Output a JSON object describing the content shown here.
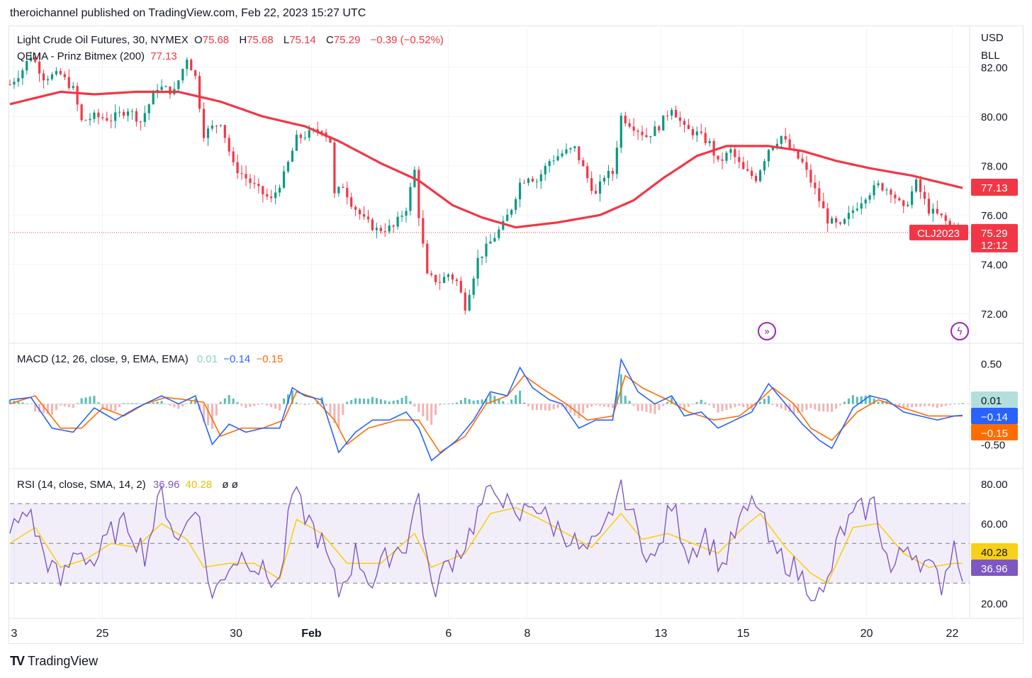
{
  "header": {
    "publisher": "theroichannel published on TradingView.com, Feb 22, 2023 15:27 UTC"
  },
  "footer": {
    "brand": "TradingView",
    "logo_icon": "tradingview-logo-icon"
  },
  "colors": {
    "up": "#089981",
    "down": "#f23645",
    "ema": "#f23645",
    "macd": "#2962ff",
    "signal": "#ff6d00",
    "rsi": "#7e57c2",
    "rsi_ma": "#f7d117",
    "hist_up": "#26a69a",
    "hist_down": "#ef9a9a"
  },
  "chart_data": [
    {
      "type": "candlestick",
      "title": "Light Crude Oil Futures, 30, NYMEX",
      "symbol_tag": "CLJ2023",
      "ohlc": {
        "o_label": "O",
        "o": "75.68",
        "h_label": "H",
        "h": "75.68",
        "l_label": "L",
        "l": "75.14",
        "c_label": "C",
        "c": "75.29",
        "change": "−0.39 (−0.52%)"
      },
      "indicator": {
        "name": "QEMA - Prinz Bitmex (200)",
        "value": "77.13"
      },
      "currency": "USD",
      "unit": "BLL",
      "price_label": "75.29",
      "countdown": "12:12",
      "ylim": [
        71.2,
        83.0
      ],
      "yticks": [
        "82.00",
        "80.00",
        "78.00",
        "76.00",
        "74.00",
        "72.00"
      ],
      "xticks": [
        "3",
        "25",
        "30",
        "Feb",
        "6",
        "8",
        "13",
        "15",
        "20",
        "22"
      ],
      "price_anchors": [
        [
          0,
          81.3
        ],
        [
          3,
          81.9
        ],
        [
          5,
          82.5
        ],
        [
          8,
          81.6
        ],
        [
          12,
          81.7
        ],
        [
          15,
          81.1
        ],
        [
          17,
          79.8
        ],
        [
          20,
          80.0
        ],
        [
          24,
          79.9
        ],
        [
          28,
          80.3
        ],
        [
          31,
          79.8
        ],
        [
          35,
          81.2
        ],
        [
          39,
          81.0
        ],
        [
          42,
          82.4
        ],
        [
          44,
          81.6
        ],
        [
          46,
          79.3
        ],
        [
          50,
          79.8
        ],
        [
          53,
          78.0
        ],
        [
          56,
          77.5
        ],
        [
          59,
          77.0
        ],
        [
          62,
          76.6
        ],
        [
          65,
          77.6
        ],
        [
          68,
          79.1
        ],
        [
          71,
          79.3
        ],
        [
          74,
          79.5
        ],
        [
          76,
          79.0
        ],
        [
          77,
          76.8
        ],
        [
          79,
          77.2
        ],
        [
          81,
          76.5
        ],
        [
          84,
          75.8
        ],
        [
          87,
          75.4
        ],
        [
          91,
          75.5
        ],
        [
          94,
          76.3
        ],
        [
          96,
          77.8
        ],
        [
          97,
          76.0
        ],
        [
          99,
          73.5
        ],
        [
          102,
          73.3
        ],
        [
          104,
          73.6
        ],
        [
          106,
          73.3
        ],
        [
          108,
          72.3
        ],
        [
          111,
          74.2
        ],
        [
          114,
          74.9
        ],
        [
          117,
          75.6
        ],
        [
          119,
          76.3
        ],
        [
          121,
          77.3
        ],
        [
          123,
          77.6
        ],
        [
          125,
          77.4
        ],
        [
          128,
          78.2
        ],
        [
          131,
          78.5
        ],
        [
          134,
          78.7
        ],
        [
          137,
          77.5
        ],
        [
          139,
          76.8
        ],
        [
          141,
          77.6
        ],
        [
          143,
          77.7
        ],
        [
          145,
          80.0
        ],
        [
          148,
          79.6
        ],
        [
          151,
          79.2
        ],
        [
          154,
          79.6
        ],
        [
          157,
          80.4
        ],
        [
          160,
          79.5
        ],
        [
          163,
          79.3
        ],
        [
          166,
          78.9
        ],
        [
          168,
          78.1
        ],
        [
          171,
          78.6
        ],
        [
          174,
          77.8
        ],
        [
          177,
          77.5
        ],
        [
          180,
          78.7
        ],
        [
          183,
          79.2
        ],
        [
          185,
          78.7
        ],
        [
          188,
          78.1
        ],
        [
          191,
          77.0
        ],
        [
          194,
          75.8
        ],
        [
          197,
          75.5
        ],
        [
          200,
          76.2
        ],
        [
          203,
          76.8
        ],
        [
          206,
          77.2
        ],
        [
          209,
          77.0
        ],
        [
          212,
          76.2
        ],
        [
          215,
          77.3
        ],
        [
          218,
          76.2
        ],
        [
          221,
          75.9
        ],
        [
          224,
          75.4
        ],
        [
          226,
          75.3
        ]
      ],
      "ema_anchors": [
        [
          0,
          80.5
        ],
        [
          12,
          81.0
        ],
        [
          20,
          80.9
        ],
        [
          30,
          81.0
        ],
        [
          40,
          81.0
        ],
        [
          50,
          80.6
        ],
        [
          60,
          80.0
        ],
        [
          70,
          79.6
        ],
        [
          78,
          79.0
        ],
        [
          88,
          78.1
        ],
        [
          97,
          77.4
        ],
        [
          105,
          76.4
        ],
        [
          112,
          75.9
        ],
        [
          120,
          75.5
        ],
        [
          130,
          75.7
        ],
        [
          140,
          76.0
        ],
        [
          148,
          76.6
        ],
        [
          155,
          77.5
        ],
        [
          163,
          78.4
        ],
        [
          170,
          78.8
        ],
        [
          180,
          78.8
        ],
        [
          188,
          78.6
        ],
        [
          196,
          78.2
        ],
        [
          204,
          77.9
        ],
        [
          214,
          77.6
        ],
        [
          226,
          77.1
        ]
      ]
    },
    {
      "type": "macd",
      "title": "MACD (12, 26, close, 9, EMA, EMA)",
      "values": {
        "hist": "0.01",
        "macd": "−0.14",
        "signal": "−0.15"
      },
      "ylim": [
        -0.75,
        0.68
      ],
      "yticks": [
        "0.50",
        "-0.50"
      ],
      "macd_anchors": [
        [
          0,
          0.05
        ],
        [
          5,
          0.08
        ],
        [
          10,
          -0.3
        ],
        [
          15,
          -0.35
        ],
        [
          20,
          -0.05
        ],
        [
          25,
          -0.2
        ],
        [
          30,
          -0.05
        ],
        [
          36,
          0.1
        ],
        [
          40,
          0.0
        ],
        [
          44,
          0.1
        ],
        [
          48,
          -0.5
        ],
        [
          52,
          -0.25
        ],
        [
          56,
          -0.35
        ],
        [
          60,
          -0.3
        ],
        [
          64,
          -0.3
        ],
        [
          67,
          0.2
        ],
        [
          70,
          0.1
        ],
        [
          74,
          0.05
        ],
        [
          78,
          -0.6
        ],
        [
          82,
          -0.35
        ],
        [
          86,
          -0.2
        ],
        [
          90,
          -0.2
        ],
        [
          94,
          -0.1
        ],
        [
          97,
          -0.3
        ],
        [
          100,
          -0.7
        ],
        [
          106,
          -0.45
        ],
        [
          110,
          -0.2
        ],
        [
          114,
          0.15
        ],
        [
          118,
          0.1
        ],
        [
          121,
          0.45
        ],
        [
          124,
          0.2
        ],
        [
          128,
          0.05
        ],
        [
          131,
          0.0
        ],
        [
          135,
          -0.3
        ],
        [
          139,
          -0.2
        ],
        [
          143,
          -0.2
        ],
        [
          145,
          0.55
        ],
        [
          149,
          0.15
        ],
        [
          153,
          0.0
        ],
        [
          157,
          0.1
        ],
        [
          160,
          -0.15
        ],
        [
          164,
          -0.1
        ],
        [
          168,
          -0.3
        ],
        [
          172,
          -0.2
        ],
        [
          176,
          -0.1
        ],
        [
          180,
          0.25
        ],
        [
          184,
          0.0
        ],
        [
          188,
          -0.25
        ],
        [
          192,
          -0.45
        ],
        [
          195,
          -0.55
        ],
        [
          200,
          -0.05
        ],
        [
          204,
          0.1
        ],
        [
          208,
          0.05
        ],
        [
          212,
          -0.1
        ],
        [
          216,
          -0.15
        ],
        [
          220,
          -0.2
        ],
        [
          224,
          -0.15
        ],
        [
          226,
          -0.14
        ]
      ],
      "signal_anchors": [
        [
          0,
          0.0
        ],
        [
          6,
          0.1
        ],
        [
          12,
          -0.3
        ],
        [
          17,
          -0.3
        ],
        [
          22,
          -0.05
        ],
        [
          27,
          -0.15
        ],
        [
          32,
          0.0
        ],
        [
          37,
          0.08
        ],
        [
          42,
          0.05
        ],
        [
          46,
          0.02
        ],
        [
          50,
          -0.4
        ],
        [
          55,
          -0.3
        ],
        [
          60,
          -0.3
        ],
        [
          65,
          -0.2
        ],
        [
          68,
          0.15
        ],
        [
          72,
          0.08
        ],
        [
          77,
          -0.2
        ],
        [
          80,
          -0.5
        ],
        [
          85,
          -0.3
        ],
        [
          92,
          -0.2
        ],
        [
          97,
          -0.2
        ],
        [
          102,
          -0.6
        ],
        [
          108,
          -0.4
        ],
        [
          113,
          0.0
        ],
        [
          118,
          0.1
        ],
        [
          122,
          0.35
        ],
        [
          126,
          0.2
        ],
        [
          132,
          0.0
        ],
        [
          137,
          -0.2
        ],
        [
          143,
          -0.15
        ],
        [
          146,
          0.35
        ],
        [
          150,
          0.2
        ],
        [
          156,
          0.05
        ],
        [
          161,
          -0.1
        ],
        [
          167,
          -0.2
        ],
        [
          173,
          -0.15
        ],
        [
          178,
          0.05
        ],
        [
          181,
          0.2
        ],
        [
          186,
          0.0
        ],
        [
          190,
          -0.3
        ],
        [
          195,
          -0.45
        ],
        [
          201,
          -0.1
        ],
        [
          206,
          0.05
        ],
        [
          212,
          -0.05
        ],
        [
          218,
          -0.15
        ],
        [
          226,
          -0.15
        ]
      ]
    },
    {
      "type": "rsi",
      "title": "RSI (14, close, SMA, 14, 2)",
      "values": {
        "rsi": "36.96",
        "rsi_ma": "40.28"
      },
      "extra": "ø ø",
      "ylim": [
        13,
        85
      ],
      "yticks": [
        "80.00",
        "60.00",
        "40.00",
        "20.00"
      ],
      "bands": [
        70,
        50,
        30
      ],
      "rsi_anchors": [
        [
          0,
          55
        ],
        [
          4,
          68
        ],
        [
          8,
          45
        ],
        [
          12,
          30
        ],
        [
          16,
          48
        ],
        [
          20,
          40
        ],
        [
          24,
          55
        ],
        [
          28,
          60
        ],
        [
          32,
          45
        ],
        [
          36,
          75
        ],
        [
          40,
          50
        ],
        [
          44,
          72
        ],
        [
          48,
          22
        ],
        [
          52,
          40
        ],
        [
          56,
          45
        ],
        [
          60,
          35
        ],
        [
          64,
          30
        ],
        [
          67,
          75
        ],
        [
          70,
          65
        ],
        [
          74,
          50
        ],
        [
          78,
          25
        ],
        [
          82,
          45
        ],
        [
          86,
          30
        ],
        [
          90,
          45
        ],
        [
          94,
          50
        ],
        [
          97,
          75
        ],
        [
          100,
          25
        ],
        [
          104,
          40
        ],
        [
          108,
          50
        ],
        [
          112,
          70
        ],
        [
          116,
          78
        ],
        [
          120,
          60
        ],
        [
          124,
          72
        ],
        [
          128,
          60
        ],
        [
          132,
          55
        ],
        [
          136,
          45
        ],
        [
          140,
          50
        ],
        [
          145,
          80
        ],
        [
          149,
          55
        ],
        [
          153,
          40
        ],
        [
          157,
          70
        ],
        [
          161,
          45
        ],
        [
          165,
          55
        ],
        [
          169,
          38
        ],
        [
          173,
          60
        ],
        [
          177,
          72
        ],
        [
          181,
          45
        ],
        [
          185,
          40
        ],
        [
          189,
          30
        ],
        [
          193,
          22
        ],
        [
          197,
          55
        ],
        [
          201,
          65
        ],
        [
          205,
          70
        ],
        [
          209,
          35
        ],
        [
          213,
          50
        ],
        [
          217,
          40
        ],
        [
          221,
          30
        ],
        [
          224,
          50
        ],
        [
          226,
          37
        ]
      ],
      "ma_anchors": [
        [
          0,
          50
        ],
        [
          6,
          58
        ],
        [
          12,
          38
        ],
        [
          18,
          42
        ],
        [
          24,
          50
        ],
        [
          30,
          48
        ],
        [
          36,
          60
        ],
        [
          42,
          52
        ],
        [
          46,
          38
        ],
        [
          52,
          40
        ],
        [
          58,
          40
        ],
        [
          64,
          32
        ],
        [
          68,
          62
        ],
        [
          74,
          55
        ],
        [
          80,
          40
        ],
        [
          88,
          40
        ],
        [
          96,
          55
        ],
        [
          100,
          38
        ],
        [
          108,
          45
        ],
        [
          114,
          65
        ],
        [
          120,
          68
        ],
        [
          126,
          62
        ],
        [
          132,
          55
        ],
        [
          138,
          48
        ],
        [
          145,
          65
        ],
        [
          150,
          52
        ],
        [
          156,
          55
        ],
        [
          162,
          50
        ],
        [
          168,
          45
        ],
        [
          174,
          58
        ],
        [
          178,
          65
        ],
        [
          184,
          48
        ],
        [
          190,
          35
        ],
        [
          194,
          30
        ],
        [
          200,
          58
        ],
        [
          206,
          60
        ],
        [
          212,
          45
        ],
        [
          218,
          38
        ],
        [
          224,
          40
        ],
        [
          226,
          40
        ]
      ]
    }
  ]
}
